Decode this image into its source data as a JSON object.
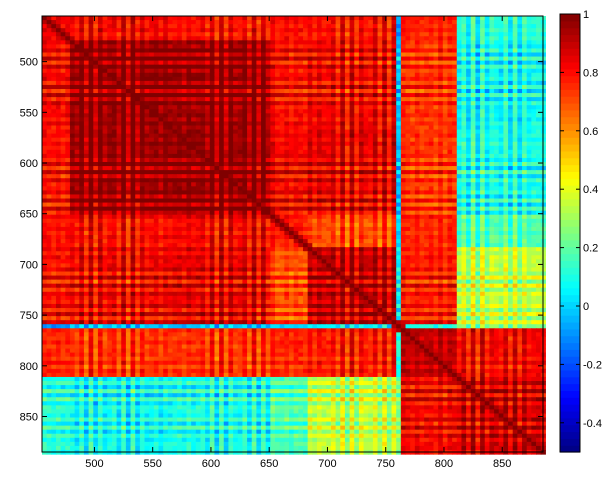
{
  "chart_data": {
    "type": "heatmap",
    "title": "",
    "xlabel": "",
    "ylabel": "",
    "x_range": [
      455,
      885
    ],
    "y_range": [
      455,
      885
    ],
    "y_reversed": true,
    "x_ticks": [
      500,
      550,
      600,
      650,
      700,
      750,
      800,
      850
    ],
    "y_ticks": [
      500,
      550,
      600,
      650,
      700,
      750,
      800,
      850
    ],
    "x_tick_labels": [
      "500",
      "550",
      "600",
      "650",
      "700",
      "750",
      "800",
      "850"
    ],
    "y_tick_labels": [
      "500",
      "550",
      "600",
      "650",
      "700",
      "750",
      "800",
      "850"
    ],
    "colorbar": {
      "colormap": "jet",
      "range": [
        -0.5,
        1
      ],
      "ticks": [
        1,
        0.8,
        0.6,
        0.4,
        0.2,
        0,
        -0.2,
        -0.4
      ],
      "tick_labels": [
        "1",
        "0.8",
        "0.6",
        "0.4",
        "0.2",
        "0",
        "-0.2",
        "-0.4"
      ]
    },
    "blocks": [
      {
        "range": [
          455,
          480
        ],
        "level": 0.82
      },
      {
        "range": [
          480,
          565
        ],
        "level": 0.97
      },
      {
        "range": [
          565,
          650
        ],
        "level": 0.97
      },
      {
        "range": [
          650,
          685
        ],
        "level": 0.78
      },
      {
        "range": [
          685,
          760
        ],
        "level": 0.9
      },
      {
        "range": [
          760,
          765
        ],
        "level": 0.0
      },
      {
        "range": [
          765,
          812
        ],
        "level": 0.9
      },
      {
        "range": [
          812,
          885
        ],
        "level": 0.88
      }
    ],
    "cross_correlation": [
      {
        "blocks": [
          0,
          1
        ],
        "value": 0.82
      },
      {
        "blocks": [
          0,
          2
        ],
        "value": 0.8
      },
      {
        "blocks": [
          0,
          3
        ],
        "value": 0.8
      },
      {
        "blocks": [
          0,
          4
        ],
        "value": 0.8
      },
      {
        "blocks": [
          1,
          2
        ],
        "value": 0.96
      },
      {
        "blocks": [
          1,
          3
        ],
        "value": 0.8
      },
      {
        "blocks": [
          1,
          4
        ],
        "value": 0.83
      },
      {
        "blocks": [
          2,
          3
        ],
        "value": 0.82
      },
      {
        "blocks": [
          2,
          4
        ],
        "value": 0.85
      },
      {
        "blocks": [
          0,
          6
        ],
        "value": 0.76
      },
      {
        "blocks": [
          1,
          6
        ],
        "value": 0.74
      },
      {
        "blocks": [
          2,
          6
        ],
        "value": 0.74
      },
      {
        "blocks": [
          3,
          6
        ],
        "value": 0.76
      },
      {
        "blocks": [
          4,
          6
        ],
        "value": 0.78
      },
      {
        "blocks": [
          0,
          7
        ],
        "value": 0.12
      },
      {
        "blocks": [
          1,
          7
        ],
        "value": 0.08
      },
      {
        "blocks": [
          2,
          7
        ],
        "value": 0.1
      },
      {
        "blocks": [
          3,
          7
        ],
        "value": 0.18
      },
      {
        "blocks": [
          4,
          7
        ],
        "value": 0.35
      },
      {
        "blocks": [
          6,
          7
        ],
        "value": 0.82
      },
      {
        "blocks": [
          0,
          5
        ],
        "value": -0.05
      },
      {
        "blocks": [
          1,
          5
        ],
        "value": 0.02
      },
      {
        "blocks": [
          2,
          5
        ],
        "value": 0.02
      },
      {
        "blocks": [
          3,
          5
        ],
        "value": 0.05
      },
      {
        "blocks": [
          4,
          5
        ],
        "value": 0.1
      },
      {
        "blocks": [
          5,
          6
        ],
        "value": 0.15
      },
      {
        "blocks": [
          5,
          7
        ],
        "value": 0.3
      }
    ],
    "diagonal_value": 1
  },
  "colors": {
    "frame": "#000000",
    "background": "#ffffff"
  }
}
